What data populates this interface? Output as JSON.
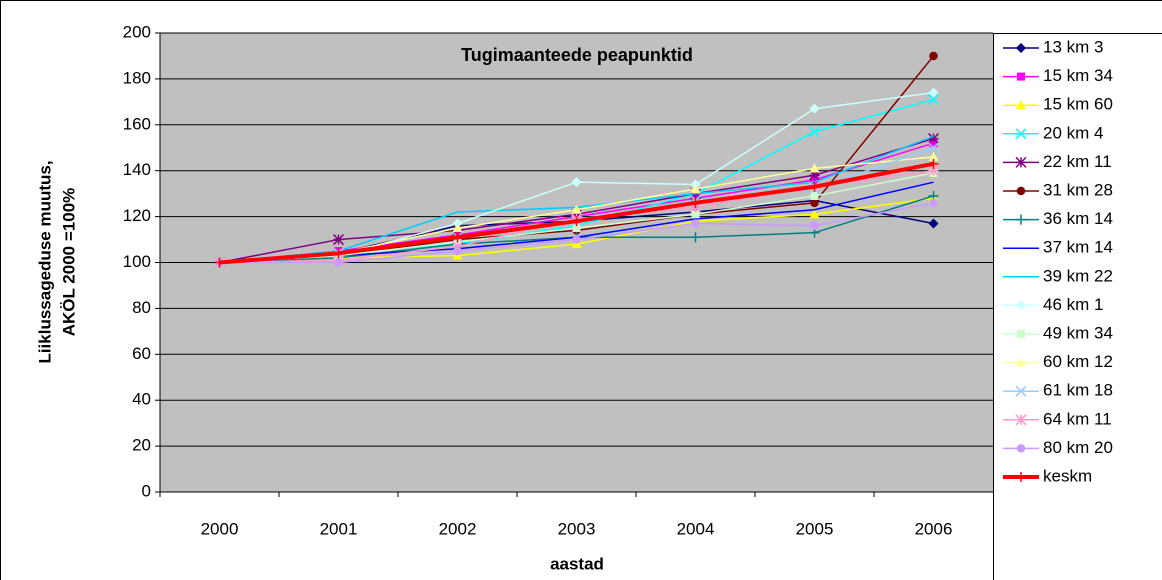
{
  "chart_data": {
    "type": "line",
    "title": "Tugimaanteede peapunktid",
    "xlabel": "aastad",
    "ylabel": [
      "Liiklussageduse muutus,",
      "AKÖL 2000 =100%"
    ],
    "categories": [
      "2000",
      "2001",
      "2002",
      "2003",
      "2004",
      "2005",
      "2006"
    ],
    "ylim": [
      0,
      200
    ],
    "yticks": [
      0,
      20,
      40,
      60,
      80,
      100,
      120,
      140,
      160,
      180,
      200
    ],
    "grid": true,
    "legend": "right",
    "series": [
      {
        "name": "13 km 3",
        "color": "#000080",
        "marker": "diamond",
        "width": 1.5,
        "values": [
          100,
          104,
          116,
          118,
          122,
          127,
          117
        ]
      },
      {
        "name": "15 km 34",
        "color": "#ff00ff",
        "marker": "square",
        "width": 1.5,
        "values": [
          100,
          105,
          112,
          120,
          128,
          136,
          152
        ]
      },
      {
        "name": "15 km 60",
        "color": "#ffff00",
        "marker": "triangle",
        "width": 1.5,
        "values": [
          100,
          102,
          103,
          108,
          118,
          121,
          128
        ]
      },
      {
        "name": "20 km 4",
        "color": "#00ffff",
        "marker": "x",
        "width": 1.5,
        "values": [
          100,
          104,
          108,
          116,
          130,
          157,
          171
        ]
      },
      {
        "name": "22 km 11",
        "color": "#800080",
        "marker": "star",
        "width": 1.5,
        "values": [
          100,
          110,
          114,
          121,
          130,
          138,
          154
        ]
      },
      {
        "name": "31 km 28",
        "color": "#800000",
        "marker": "circle",
        "width": 1.5,
        "values": [
          100,
          103,
          110,
          114,
          121,
          126,
          190
        ]
      },
      {
        "name": "36 km 14",
        "color": "#008080",
        "marker": "plus",
        "width": 1.5,
        "values": [
          100,
          102,
          108,
          111,
          111,
          113,
          129
        ]
      },
      {
        "name": "37 km 14",
        "color": "#0000ff",
        "marker": "none",
        "width": 1.5,
        "values": [
          100,
          103,
          106,
          111,
          119,
          123,
          135
        ]
      },
      {
        "name": "39 km 22",
        "color": "#00ccff",
        "marker": "none",
        "width": 1.5,
        "values": [
          100,
          105,
          122,
          124,
          130,
          135,
          155
        ]
      },
      {
        "name": "46 km 1",
        "color": "#ccffff",
        "marker": "diamond",
        "width": 1.5,
        "values": [
          100,
          103,
          117,
          135,
          134,
          167,
          174
        ]
      },
      {
        "name": "49 km 34",
        "color": "#ccffcc",
        "marker": "square",
        "width": 1.5,
        "values": [
          100,
          103,
          109,
          115,
          121,
          129,
          139
        ]
      },
      {
        "name": "60 km 12",
        "color": "#ffff99",
        "marker": "triangle",
        "width": 1.5,
        "values": [
          100,
          104,
          115,
          123,
          132,
          141,
          146
        ]
      },
      {
        "name": "61 km 18",
        "color": "#99ccff",
        "marker": "x",
        "width": 1.5,
        "values": [
          100,
          104,
          111,
          118,
          127,
          132,
          150
        ]
      },
      {
        "name": "64 km 11",
        "color": "#ff99cc",
        "marker": "star",
        "width": 1.5,
        "values": [
          100,
          101,
          107,
          119,
          124,
          133,
          140
        ]
      },
      {
        "name": "80 km 20",
        "color": "#cc99ff",
        "marker": "circle",
        "width": 1.5,
        "values": [
          100,
          100,
          105,
          110,
          117,
          116,
          126
        ]
      },
      {
        "name": "keskm",
        "color": "#ff0000",
        "marker": "plus",
        "width": 4,
        "values": [
          100,
          104,
          111,
          118,
          126,
          133,
          143
        ]
      }
    ]
  }
}
